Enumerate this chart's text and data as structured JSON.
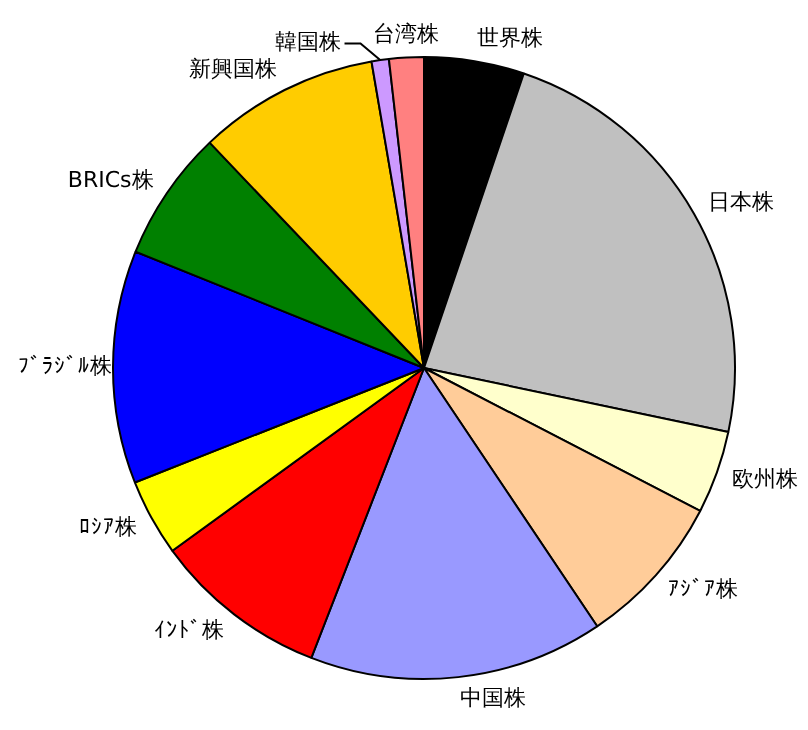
{
  "chart_data": {
    "type": "pie",
    "categories": [
      "世界株",
      "日本株",
      "欧州株",
      "ｱｼﾞｱ株",
      "中国株",
      "ｲﾝﾄﾞ株",
      "ﾛｼｱ株",
      "ﾌﾞﾗｼﾞﾙ株",
      "BRICs株",
      "新興国株",
      "韓国株",
      "台湾株"
    ],
    "values": [
      5.2,
      23.1,
      4.3,
      8.0,
      15.3,
      9.1,
      4.0,
      12.1,
      6.8,
      9.4,
      0.9,
      1.8
    ],
    "colors": [
      "#000000",
      "#c0c0c0",
      "#ffffcc",
      "#ffcc99",
      "#9999ff",
      "#ff0000",
      "#ffff00",
      "#0000ff",
      "#008000",
      "#ffcc00",
      "#cc99ff",
      "#ff8080"
    ]
  }
}
